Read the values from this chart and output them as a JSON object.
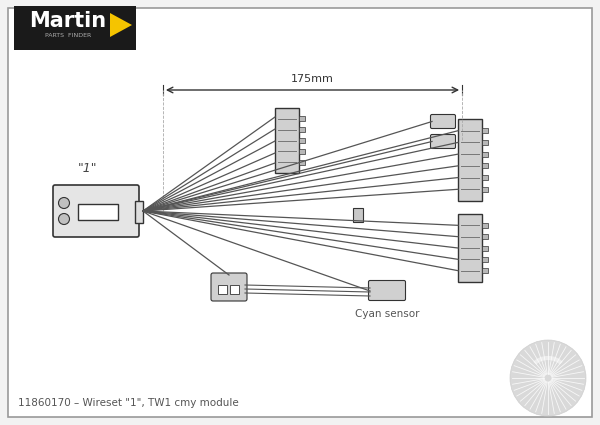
{
  "title": "11860170 – Wireset \"1\", TW1 cmy module",
  "martin_logo_text": "Martin",
  "martin_sub_text": "PARTS  FINDER",
  "label_1": "\"1\"",
  "dimension_text": "175mm",
  "cyan_sensor_text": "Cyan sensor",
  "bg_color": "#f2f2f2",
  "border_color": "#aaaaaa",
  "line_color": "#555555",
  "connector_color": "#888888",
  "dark_color": "#333333",
  "logo_bg": "#1a1a1a",
  "logo_yellow": "#f5c400",
  "logo_text_color": "#ffffff"
}
